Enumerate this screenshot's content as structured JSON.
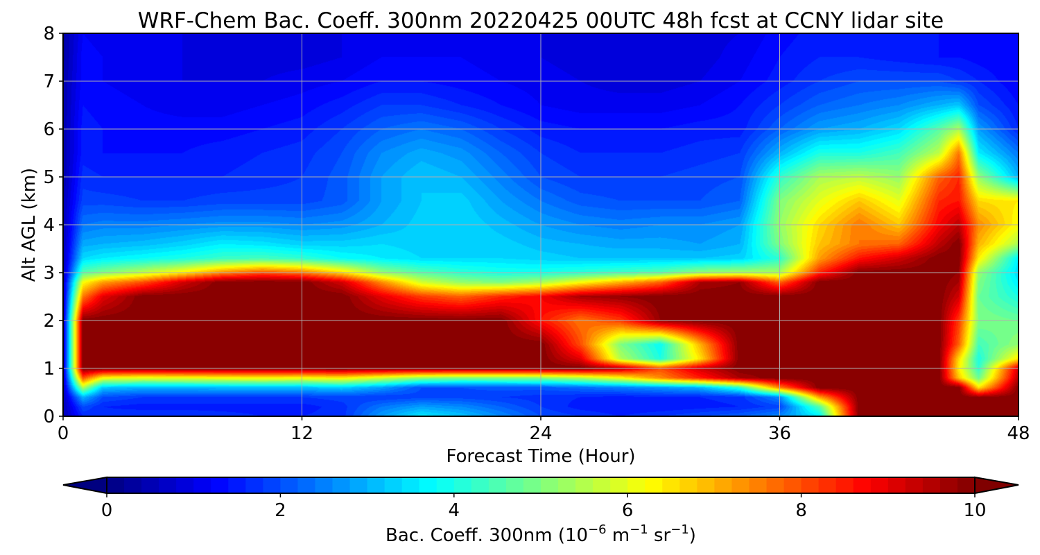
{
  "chart_data": {
    "type": "heatmap",
    "title": "WRF-Chem Bac. Coeff. 300nm  20220425 00UTC 48h fcst at CCNY lidar site",
    "xlabel": "Forecast Time (Hour)",
    "ylabel": "Alt AGL (km)",
    "xlim": [
      0,
      48
    ],
    "ylim": [
      0,
      8
    ],
    "xticks": [
      0,
      12,
      24,
      36,
      48
    ],
    "yticks": [
      0,
      1,
      2,
      3,
      4,
      5,
      6,
      7,
      8
    ],
    "grid": true,
    "colormap": "jet",
    "colorbar": {
      "label_main": "Bac. Coeff. 300nm  (10",
      "exp1": "−6",
      "mid": " m",
      "exp2": "−1",
      "mid2": " sr",
      "exp3": "−1",
      "end": ")",
      "vmin": 0,
      "vmax": 10,
      "ticks": [
        0,
        2,
        4,
        6,
        8,
        10
      ],
      "extend": "both",
      "orientation": "horizontal"
    },
    "x": [
      0,
      1,
      2,
      4,
      6,
      8,
      10,
      12,
      14,
      16,
      18,
      20,
      22,
      24,
      26,
      28,
      30,
      32,
      34,
      36,
      38,
      40,
      42,
      44,
      45,
      46,
      48
    ],
    "y": [
      0,
      0.2,
      0.4,
      0.6,
      0.8,
      1.0,
      1.2,
      1.5,
      2.0,
      2.5,
      2.8,
      3.0,
      3.3,
      3.6,
      4.0,
      4.5,
      5.0,
      5.5,
      6.0,
      6.5,
      7.0,
      7.5,
      8.0
    ],
    "z": [
      [
        0.5,
        1.6,
        1.7,
        1.8,
        1.8,
        1.7,
        1.6,
        1.6,
        1.7,
        2.8,
        3.6,
        3.2,
        2.6,
        2.0,
        1.8,
        1.6,
        1.8,
        2.0,
        2.2,
        2.6,
        3.6,
        10,
        10,
        10,
        10,
        10,
        10
      ],
      [
        0.5,
        2.0,
        1.6,
        1.5,
        1.5,
        1.5,
        1.5,
        1.5,
        1.7,
        2.4,
        2.8,
        2.6,
        2.2,
        1.8,
        1.5,
        1.4,
        1.4,
        1.5,
        1.6,
        1.9,
        4.6,
        10,
        10,
        10,
        10,
        10,
        10
      ],
      [
        0.5,
        3.0,
        2.0,
        1.8,
        1.8,
        1.8,
        1.8,
        1.8,
        1.9,
        1.8,
        1.9,
        1.9,
        1.8,
        1.7,
        1.6,
        1.5,
        1.6,
        1.6,
        1.7,
        2.6,
        7.2,
        10,
        10,
        10,
        10,
        9.8,
        10
      ],
      [
        0.5,
        5.5,
        3.2,
        3.0,
        3.0,
        3.1,
        3.1,
        3.1,
        3.3,
        2.8,
        2.0,
        2.0,
        2.1,
        2.1,
        2.3,
        2.5,
        2.7,
        3.0,
        4.2,
        7.5,
        10,
        10,
        10,
        10,
        10,
        6.5,
        10
      ],
      [
        0.5,
        8.0,
        6.2,
        6.0,
        6.1,
        6.2,
        6.3,
        6.2,
        6.4,
        5.8,
        5.2,
        5.0,
        5.0,
        5.1,
        5.5,
        6.2,
        7.4,
        8.5,
        9.6,
        10,
        10,
        10,
        10,
        10,
        6.8,
        4.8,
        9.5
      ],
      [
        0.5,
        10,
        10,
        10,
        10,
        10,
        10,
        10,
        10,
        10,
        10,
        10,
        10,
        10,
        10,
        9.5,
        8.0,
        9.2,
        10,
        10,
        10,
        10,
        10,
        10,
        6.4,
        4.2,
        9.2
      ],
      [
        0.5,
        10,
        10,
        10,
        10,
        10,
        10,
        10,
        10,
        10,
        10,
        10,
        10,
        10,
        9.0,
        5.5,
        4.0,
        6.5,
        10,
        10,
        10,
        10,
        10,
        10,
        6.6,
        4.0,
        6.5
      ],
      [
        0.5,
        10,
        10,
        10,
        10,
        10,
        10,
        10,
        10,
        10,
        10,
        10,
        10,
        10,
        8.0,
        5.0,
        3.8,
        7.0,
        10,
        10,
        10,
        10,
        10,
        10,
        7.8,
        4.4,
        5.2
      ],
      [
        0.5,
        10,
        10,
        10,
        10,
        10,
        10,
        10,
        10,
        10,
        10,
        10,
        10,
        8.6,
        7.6,
        8.2,
        9.8,
        10,
        10,
        10,
        10,
        10,
        10,
        10,
        8.2,
        5.0,
        4.8
      ],
      [
        0.5,
        7.6,
        9.0,
        10,
        10,
        10,
        10,
        10,
        10,
        9.0,
        8.2,
        7.8,
        8.4,
        8.8,
        9.6,
        9.8,
        10,
        10,
        10,
        10,
        10,
        10,
        10,
        10,
        9.2,
        4.8,
        4.0
      ],
      [
        0.5,
        6.2,
        7.2,
        8.0,
        9.2,
        10,
        10,
        10,
        9.2,
        7.4,
        5.8,
        5.2,
        5.0,
        5.4,
        6.2,
        7.0,
        7.8,
        9.6,
        9.8,
        7.8,
        10,
        10,
        10,
        10,
        9.6,
        5.0,
        3.6
      ],
      [
        0.5,
        4.6,
        5.0,
        5.6,
        6.4,
        7.4,
        8.0,
        7.6,
        6.6,
        5.2,
        4.6,
        4.2,
        4.0,
        4.0,
        4.2,
        4.4,
        4.6,
        5.2,
        5.4,
        5.4,
        8.4,
        10,
        10,
        10,
        9.8,
        5.2,
        3.4
      ],
      [
        0.5,
        3.4,
        3.6,
        3.8,
        4.0,
        4.3,
        4.4,
        4.2,
        3.8,
        3.6,
        3.4,
        3.4,
        3.4,
        3.3,
        3.2,
        3.2,
        3.2,
        3.2,
        3.3,
        4.2,
        7.2,
        8.6,
        9.2,
        10,
        10,
        6.4,
        3.6
      ],
      [
        0.5,
        2.9,
        3.0,
        3.1,
        3.3,
        3.6,
        3.5,
        3.3,
        3.3,
        3.4,
        3.3,
        3.4,
        3.3,
        3.1,
        3.0,
        2.9,
        2.9,
        2.8,
        3.0,
        5.0,
        6.8,
        7.6,
        7.8,
        9.4,
        10,
        7.0,
        5.4
      ],
      [
        0.5,
        2.4,
        2.5,
        2.5,
        2.6,
        2.7,
        2.7,
        2.6,
        2.7,
        3.0,
        3.3,
        3.4,
        3.1,
        2.8,
        2.6,
        2.5,
        2.6,
        2.6,
        2.8,
        5.2,
        6.6,
        7.6,
        6.8,
        8.8,
        9.4,
        7.4,
        6.2
      ],
      [
        0.5,
        1.9,
        1.9,
        1.8,
        1.8,
        1.9,
        1.9,
        1.9,
        2.1,
        2.8,
        3.2,
        3.3,
        2.8,
        2.4,
        2.1,
        2.0,
        2.0,
        2.0,
        2.2,
        5.0,
        6.0,
        6.8,
        6.0,
        8.4,
        8.6,
        6.6,
        6.4
      ],
      [
        0.4,
        1.7,
        1.6,
        1.6,
        1.6,
        1.6,
        1.7,
        1.8,
        2.1,
        2.8,
        3.2,
        3.0,
        2.5,
        2.0,
        1.8,
        1.8,
        1.8,
        1.9,
        2.0,
        4.2,
        5.4,
        5.6,
        5.2,
        7.8,
        8.4,
        5.2,
        3.0
      ],
      [
        0.4,
        1.5,
        1.4,
        1.4,
        1.4,
        1.5,
        1.6,
        1.7,
        2.0,
        2.6,
        2.9,
        2.7,
        2.2,
        1.8,
        1.6,
        1.6,
        1.6,
        1.7,
        1.8,
        3.0,
        4.0,
        4.0,
        4.4,
        5.6,
        7.6,
        3.6,
        2.4
      ],
      [
        0.4,
        1.5,
        1.4,
        1.3,
        1.3,
        1.3,
        1.4,
        1.5,
        1.8,
        2.2,
        2.4,
        2.2,
        1.8,
        1.5,
        1.4,
        1.4,
        1.4,
        1.5,
        1.5,
        2.2,
        2.8,
        3.0,
        3.4,
        4.6,
        5.4,
        2.8,
        1.6
      ],
      [
        0.4,
        1.4,
        1.3,
        1.2,
        1.1,
        1.1,
        1.2,
        1.3,
        1.5,
        1.8,
        1.8,
        1.6,
        1.4,
        1.2,
        1.1,
        1.1,
        1.1,
        1.2,
        1.4,
        1.8,
        2.2,
        2.4,
        2.6,
        3.0,
        3.2,
        2.0,
        1.4
      ],
      [
        0.4,
        1.3,
        1.2,
        1.1,
        1.0,
        1.0,
        1.0,
        1.1,
        1.2,
        1.4,
        1.4,
        1.3,
        1.2,
        1.1,
        1.0,
        0.9,
        0.9,
        1.0,
        1.2,
        1.5,
        1.8,
        2.0,
        2.0,
        2.0,
        1.8,
        1.6,
        1.2
      ],
      [
        0.3,
        1.3,
        1.2,
        1.1,
        1.0,
        0.9,
        0.9,
        0.9,
        1.0,
        1.2,
        1.2,
        1.2,
        1.1,
        1.0,
        0.9,
        0.8,
        0.8,
        0.9,
        1.1,
        1.4,
        1.6,
        1.6,
        1.5,
        1.4,
        1.4,
        1.3,
        1.2
      ],
      [
        0.3,
        1.2,
        1.1,
        1.0,
        1.0,
        0.9,
        0.8,
        0.9,
        1.0,
        1.1,
        1.2,
        1.1,
        1.1,
        1.0,
        0.9,
        0.8,
        0.8,
        0.9,
        1.0,
        1.3,
        1.5,
        1.5,
        1.4,
        1.4,
        1.3,
        1.3,
        1.2
      ]
    ]
  }
}
